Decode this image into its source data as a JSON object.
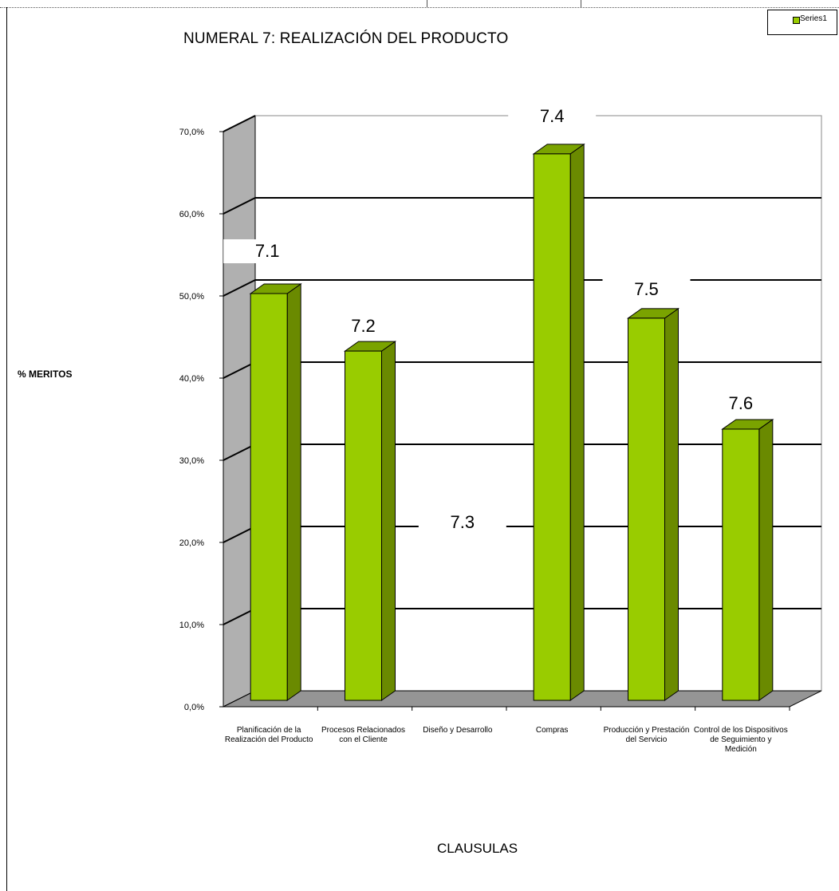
{
  "chart_data": {
    "type": "bar",
    "title": "NUMERAL 7: REALIZACIÓN DEL PRODUCTO",
    "xlabel": "CLAUSULAS",
    "ylabel": "% MERITOS",
    "categories": [
      "Planificación de la Realización del Producto",
      "Procesos Relacionados con el Cliente",
      "Diseño y Desarrollo",
      "Compras",
      "Producción y Prestación del Servicio",
      "Control de los Dispositivos de Seguimiento y Medición"
    ],
    "series": [
      {
        "name": "Series1",
        "values": [
          50.0,
          43.0,
          0.0,
          67.0,
          47.0,
          33.5
        ]
      }
    ],
    "bar_labels": [
      "7.1",
      "7.2",
      "7.3",
      "7.4",
      "7.5",
      "7.6"
    ],
    "yticks": [
      "0,0%",
      "10,0%",
      "20,0%",
      "30,0%",
      "40,0%",
      "50,0%",
      "60,0%",
      "70,0%"
    ],
    "ylim": [
      0,
      70
    ],
    "grid": true,
    "legend_position": "top-right",
    "colors": {
      "bar_front": "#99cc00",
      "bar_side": "#6a8a00",
      "bar_top": "#7aa300",
      "floor": "#959595",
      "wall": "#b0b0b0"
    }
  }
}
